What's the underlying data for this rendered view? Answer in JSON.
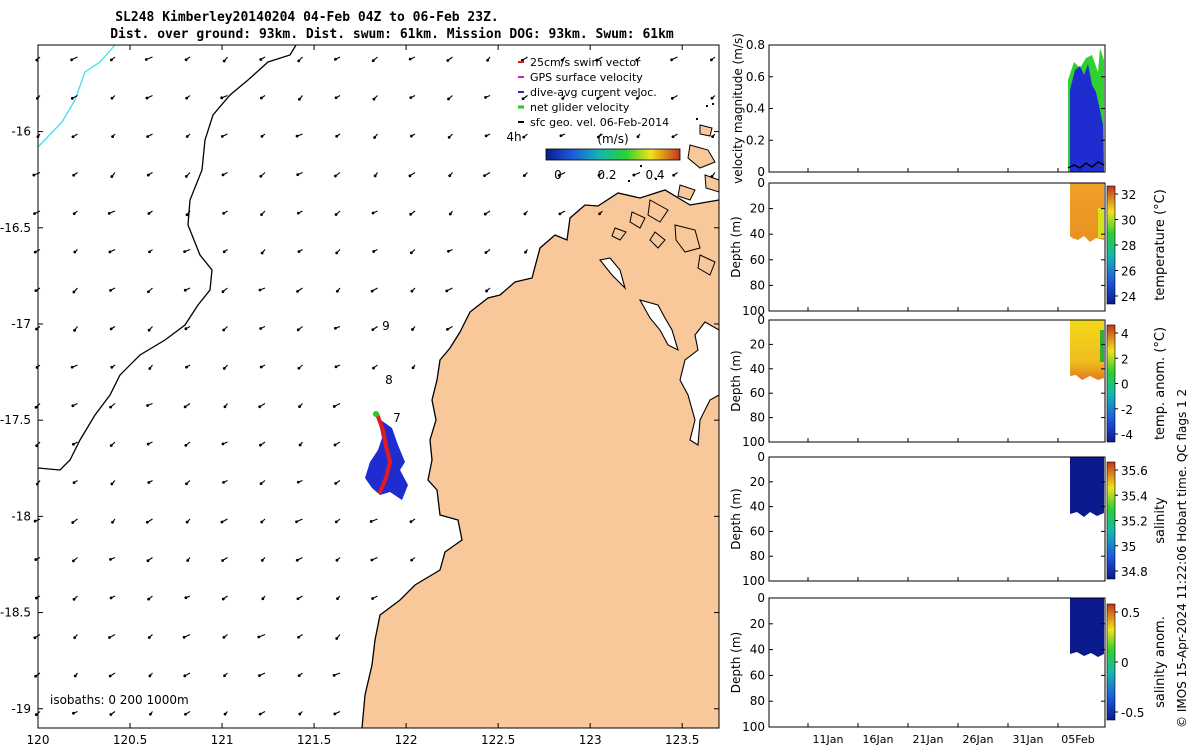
{
  "title_line1": "SL248 Kimberley20140204 04-Feb 04Z to 06-Feb 23Z.",
  "title_line2": "Dist. over ground: 93km. Dist. swum: 61km. Mission DOG: 93km. Swum: 61km",
  "map": {
    "x_ticks": [
      "120",
      "120.5",
      "121",
      "121.5",
      "122",
      "122.5",
      "123",
      "123.5"
    ],
    "y_ticks": [
      "-16",
      "-16.5",
      "-17",
      "-17.5",
      "-18",
      "-18.5",
      "-19"
    ],
    "legend": [
      {
        "label": "25cm/s swim vector",
        "color": "#e41a1c"
      },
      {
        "label": "GPS surface velocity",
        "color": "#d61ed6"
      },
      {
        "label": "dive-avg current veloc.",
        "color": "#1f2ccf"
      },
      {
        "label": "net glider velocity",
        "color": "#22cc22"
      },
      {
        "label": "sfc geo. vel. 06-Feb-2014",
        "color": "#000000"
      }
    ],
    "colorbar_label": "(m/s)",
    "colorbar_ticks": [
      "0",
      "0.2",
      "0.4"
    ],
    "hour_label": "4h",
    "day_labels": [
      "9",
      "8",
      "7"
    ],
    "isobaths_text": "isobaths: 0   200  1000m",
    "colors": {
      "land": "#f9c89a",
      "isobath_200": "#000000",
      "isobath_1000": "#3fe0e8"
    }
  },
  "panels": [
    {
      "ylabel": "velocity magnitude (m/s)",
      "yticks": [
        "0.8",
        "0.6",
        "0.4",
        "0.2",
        "0"
      ],
      "cbar_label": "",
      "cbar_ticks": []
    },
    {
      "ylabel": "Depth (m)",
      "yticks": [
        "0",
        "20",
        "40",
        "60",
        "80",
        "100"
      ],
      "cbar_label": "temperature (°C)",
      "cbar_ticks": [
        "32",
        "30",
        "28",
        "26",
        "24"
      ]
    },
    {
      "ylabel": "Depth (m)",
      "yticks": [
        "0",
        "20",
        "40",
        "60",
        "80",
        "100"
      ],
      "cbar_label": "temp. anom. (°C)",
      "cbar_ticks": [
        "4",
        "2",
        "0",
        "-2",
        "-4"
      ]
    },
    {
      "ylabel": "Depth (m)",
      "yticks": [
        "0",
        "20",
        "40",
        "60",
        "80",
        "100"
      ],
      "cbar_label": "salinity",
      "cbar_ticks": [
        "35.6",
        "35.4",
        "35.2",
        "35",
        "34.8"
      ]
    },
    {
      "ylabel": "Depth (m)",
      "yticks": [
        "0",
        "20",
        "40",
        "60",
        "80",
        "100"
      ],
      "cbar_label": "salinity anom.",
      "cbar_ticks": [
        "0.5",
        "0",
        "-0.5"
      ]
    }
  ],
  "time_ticks": [
    "11Jan",
    "16Jan",
    "21Jan",
    "26Jan",
    "31Jan",
    "05Feb"
  ],
  "footer": "© IMOS 15-Apr-2024 11:22:06 Hobart time. QC flags 1  2",
  "chart_data": [
    {
      "type": "scatter",
      "title": "SL248 Kimberley20140204 04-Feb 04Z to 06-Feb 23Z.",
      "xlim": [
        120,
        123.7
      ],
      "ylim": [
        -19.1,
        -15.55
      ],
      "x_ticks": [
        120,
        120.5,
        121,
        121.5,
        122,
        122.5,
        123,
        123.5
      ],
      "y_ticks": [
        -16,
        -16.5,
        -17,
        -17.5,
        -18,
        -18.5,
        -19
      ],
      "glider_track": {
        "start": [
          121.85,
          -17.47
        ],
        "end": [
          121.9,
          -17.9
        ]
      },
      "legend_placement": "top-right"
    },
    {
      "type": "line",
      "ylabel": "velocity magnitude (m/s)",
      "ylim": [
        0,
        0.8
      ],
      "x_ticks": [
        "11Jan",
        "16Jan",
        "21Jan",
        "26Jan",
        "31Jan",
        "05Feb"
      ],
      "series": [
        {
          "color": "#22cc22",
          "peak": 0.8
        },
        {
          "color": "#1f2ccf",
          "peak": 0.7
        },
        {
          "color": "#000000",
          "peak": 0.05
        }
      ]
    },
    {
      "type": "heatmap",
      "ylabel": "Depth (m)",
      "ylim": [
        100,
        0
      ],
      "clim": [
        23,
        32.5
      ],
      "cbar_label": "temperature (°C)"
    },
    {
      "type": "heatmap",
      "ylabel": "Depth (m)",
      "ylim": [
        100,
        0
      ],
      "clim": [
        -4,
        4
      ],
      "cbar_label": "temp. anom. (°C)"
    },
    {
      "type": "heatmap",
      "ylabel": "Depth (m)",
      "ylim": [
        100,
        0
      ],
      "clim": [
        34.7,
        35.65
      ],
      "cbar_label": "salinity"
    },
    {
      "type": "heatmap",
      "ylabel": "Depth (m)",
      "ylim": [
        100,
        0
      ],
      "clim": [
        -0.5,
        0.55
      ],
      "cbar_label": "salinity anom."
    }
  ]
}
